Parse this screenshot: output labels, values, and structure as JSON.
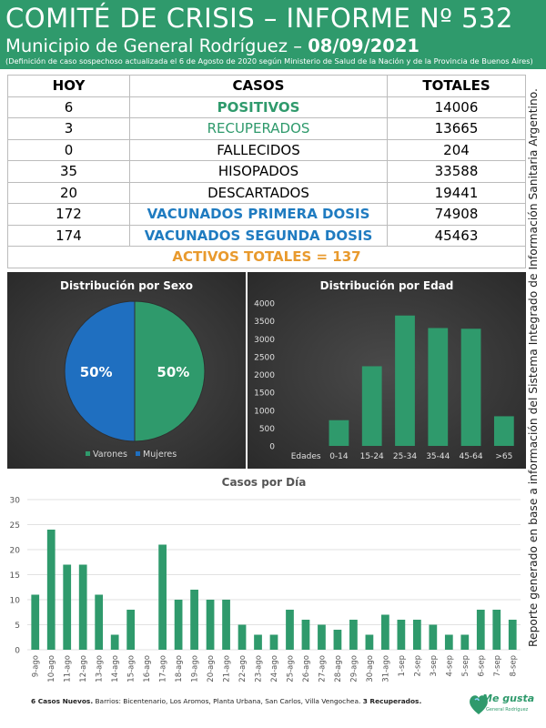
{
  "header": {
    "title": "COMITÉ DE CRISIS – INFORME Nº 532",
    "subtitle": "Municipio de General Rodríguez –",
    "date": "08/09/2021",
    "note": "(Definición de caso sospechoso actualizada el 6 de Agosto de 2020 según Ministerio de Salud de la Nación y de la Provincia de Buenos Aires)"
  },
  "summary": {
    "headers": {
      "hoy": "HOY",
      "casos": "CASOS",
      "totales": "TOTALES"
    },
    "rows": [
      {
        "hoy": "6",
        "label": "POSITIVOS",
        "total": "14006"
      },
      {
        "hoy": "3",
        "label": "RECUPERADOS",
        "total": "13665"
      },
      {
        "hoy": "0",
        "label": "FALLECIDOS",
        "total": "204"
      },
      {
        "hoy": "35",
        "label": "HISOPADOS",
        "total": "33588"
      },
      {
        "hoy": "20",
        "label": "DESCARTADOS",
        "total": "19441"
      },
      {
        "hoy": "172",
        "label": "VACUNADOS PRIMERA DOSIS",
        "total": "74908"
      },
      {
        "hoy": "174",
        "label": "VACUNADOS SEGUNDA DOSIS",
        "total": "45463"
      }
    ],
    "activos": "ACTIVOS TOTALES = 137"
  },
  "side_note": "Reporte generado en base a información del Sistema Integrado de Información Sanitaria Argentino.",
  "colors": {
    "green": "#2f9a6c",
    "blue": "#1f7bc0",
    "orange": "#e89a2e",
    "pie_blue": "#1f6fc0"
  },
  "chart_data": [
    {
      "type": "pie",
      "title": "Distribución  por Sexo",
      "labels": [
        "Varones",
        "Mujeres"
      ],
      "values": [
        50,
        50
      ],
      "value_labels": [
        "50%",
        "50%"
      ],
      "legend": "bottom"
    },
    {
      "type": "bar",
      "title": "Distribución  por Edad",
      "axis_title": "Edades",
      "categories": [
        "0-14",
        "15-24",
        "25-34",
        "35-44",
        "45-64",
        ">65"
      ],
      "values": [
        720,
        2230,
        3650,
        3300,
        3280,
        830
      ],
      "ylim": [
        0,
        4000
      ],
      "yticks": [
        "0",
        "500",
        "1000",
        "1500",
        "2000",
        "2500",
        "3000",
        "3500",
        "4000"
      ],
      "grid": false
    },
    {
      "type": "bar",
      "title": "Casos por Día",
      "categories": [
        "9-ago",
        "10-ago",
        "11-ago",
        "12-ago",
        "13-ago",
        "14-ago",
        "15-ago",
        "16-ago",
        "17-ago",
        "18-ago",
        "19-ago",
        "20-ago",
        "21-ago",
        "22-ago",
        "23-ago",
        "24-ago",
        "25-ago",
        "26-ago",
        "27-ago",
        "28-ago",
        "29-ago",
        "30-ago",
        "31-ago",
        "1-sep",
        "2-sep",
        "3-sep",
        "4-sep",
        "5-sep",
        "6-sep",
        "7-sep",
        "8-sep"
      ],
      "values": [
        11,
        24,
        17,
        17,
        11,
        3,
        8,
        0,
        21,
        10,
        12,
        10,
        10,
        5,
        3,
        3,
        8,
        6,
        5,
        4,
        6,
        3,
        7,
        6,
        6,
        5,
        3,
        3,
        8,
        8,
        6
      ],
      "ylim": [
        0,
        30
      ],
      "yticks": [
        "0",
        "5",
        "10",
        "15",
        "20",
        "25",
        "30"
      ],
      "grid": true
    }
  ],
  "footer": {
    "bold1": "6 Casos Nuevos.",
    "text": " Barrios: Bicentenario, Los Aromos, Planta Urbana, San Carlos, Villa Vengochea. ",
    "bold2": "3 Recuperados."
  },
  "logo": {
    "text": "Me gusta",
    "sub": "General Rodríguez"
  }
}
